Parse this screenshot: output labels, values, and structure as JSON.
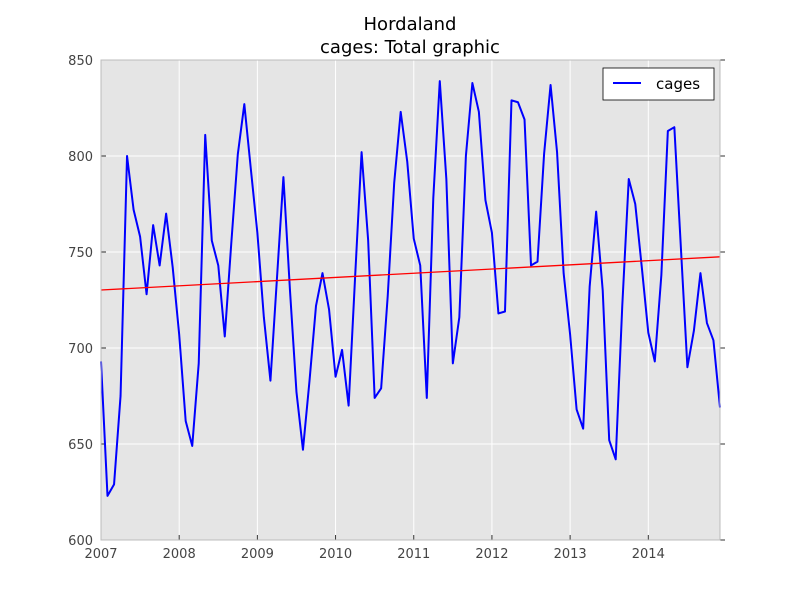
{
  "chart_data": {
    "type": "line",
    "title": "Hordaland",
    "subtitle": "cages: Total graphic",
    "xlabel": "",
    "ylabel": "",
    "xlim": [
      2007.0,
      2014.917
    ],
    "ylim": [
      600,
      850
    ],
    "x_ticks": [
      2007,
      2008,
      2009,
      2010,
      2011,
      2012,
      2013,
      2014
    ],
    "y_ticks": [
      600,
      650,
      700,
      750,
      800,
      850
    ],
    "grid": true,
    "legend_position": "top-right",
    "background_color": "#e5e5e5",
    "series": [
      {
        "name": "cages",
        "color": "#0000ff",
        "x": [
          2007.0,
          2007.083,
          2007.167,
          2007.25,
          2007.333,
          2007.417,
          2007.5,
          2007.583,
          2007.667,
          2007.75,
          2007.833,
          2007.917,
          2008.0,
          2008.083,
          2008.167,
          2008.25,
          2008.333,
          2008.417,
          2008.5,
          2008.583,
          2008.667,
          2008.75,
          2008.833,
          2008.917,
          2009.0,
          2009.083,
          2009.167,
          2009.25,
          2009.333,
          2009.417,
          2009.5,
          2009.583,
          2009.667,
          2009.75,
          2009.833,
          2009.917,
          2010.0,
          2010.083,
          2010.167,
          2010.25,
          2010.333,
          2010.417,
          2010.5,
          2010.583,
          2010.667,
          2010.75,
          2010.833,
          2010.917,
          2011.0,
          2011.083,
          2011.167,
          2011.25,
          2011.333,
          2011.417,
          2011.5,
          2011.583,
          2011.667,
          2011.75,
          2011.833,
          2011.917,
          2012.0,
          2012.083,
          2012.167,
          2012.25,
          2012.333,
          2012.417,
          2012.5,
          2012.583,
          2012.667,
          2012.75,
          2012.833,
          2012.917,
          2013.0,
          2013.083,
          2013.167,
          2013.25,
          2013.333,
          2013.417,
          2013.5,
          2013.583,
          2013.667,
          2013.75,
          2013.833,
          2013.917,
          2014.0,
          2014.083,
          2014.167,
          2014.25,
          2014.333,
          2014.417,
          2014.5,
          2014.583,
          2014.667,
          2014.75,
          2014.833,
          2014.917
        ],
        "values": [
          693,
          623,
          629,
          675,
          800,
          772,
          758,
          728,
          764,
          743,
          770,
          742,
          707,
          662,
          649,
          692,
          811,
          756,
          743,
          706,
          755,
          801,
          827,
          793,
          760,
          716,
          683,
          736,
          789,
          730,
          677,
          647,
          683,
          722,
          739,
          720,
          685,
          699,
          670,
          737,
          802,
          756,
          674,
          679,
          727,
          786,
          823,
          797,
          757,
          743,
          674,
          778,
          839,
          788,
          692,
          716,
          800,
          838,
          823,
          777,
          760,
          718,
          719,
          829,
          828,
          819,
          743,
          745,
          801,
          837,
          802,
          739,
          707,
          668,
          658,
          732,
          771,
          730,
          652,
          642,
          722,
          788,
          775,
          742,
          708,
          693,
          738,
          813,
          815,
          752,
          690,
          709,
          739,
          713,
          704,
          669
        ]
      },
      {
        "name": "",
        "color": "#ff0000",
        "x": [
          2007.0,
          2014.917
        ],
        "values": [
          730.2,
          747.5
        ]
      }
    ]
  }
}
